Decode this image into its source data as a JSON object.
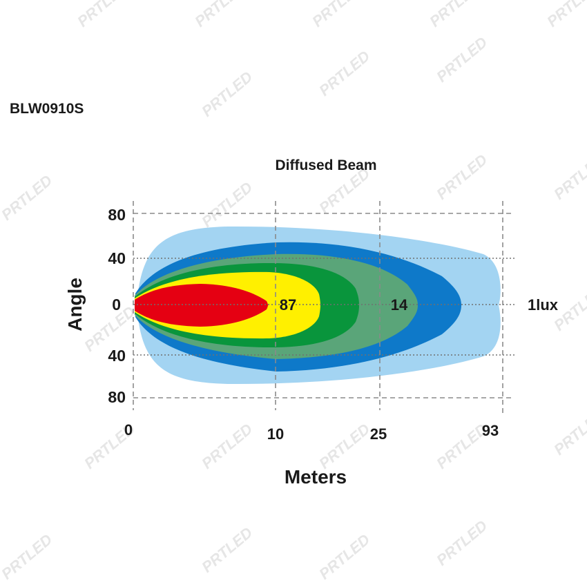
{
  "product_code": "BLW0910S",
  "watermark": "PRTLED",
  "chart_data": {
    "type": "area",
    "title": "Diffused Beam",
    "xlabel": "Meters",
    "ylabel": "Angle",
    "x_ticks": [
      "0",
      "10",
      "25",
      "93"
    ],
    "y_ticks": [
      "80",
      "40",
      "0",
      "40",
      "80"
    ],
    "grid": true,
    "zones": [
      {
        "label": "1lux",
        "reach_m": 93,
        "color": "#a3d4f2"
      },
      {
        "label": "",
        "reach_m": null,
        "color": "#0e79c9"
      },
      {
        "label": "14",
        "reach_m": 25,
        "color": "#5aa579"
      },
      {
        "label": "",
        "reach_m": null,
        "color": "#09953c"
      },
      {
        "label": "87",
        "reach_m": 10,
        "color": "#fff000"
      },
      {
        "label": "",
        "reach_m": null,
        "color": "#e50012"
      }
    ]
  }
}
